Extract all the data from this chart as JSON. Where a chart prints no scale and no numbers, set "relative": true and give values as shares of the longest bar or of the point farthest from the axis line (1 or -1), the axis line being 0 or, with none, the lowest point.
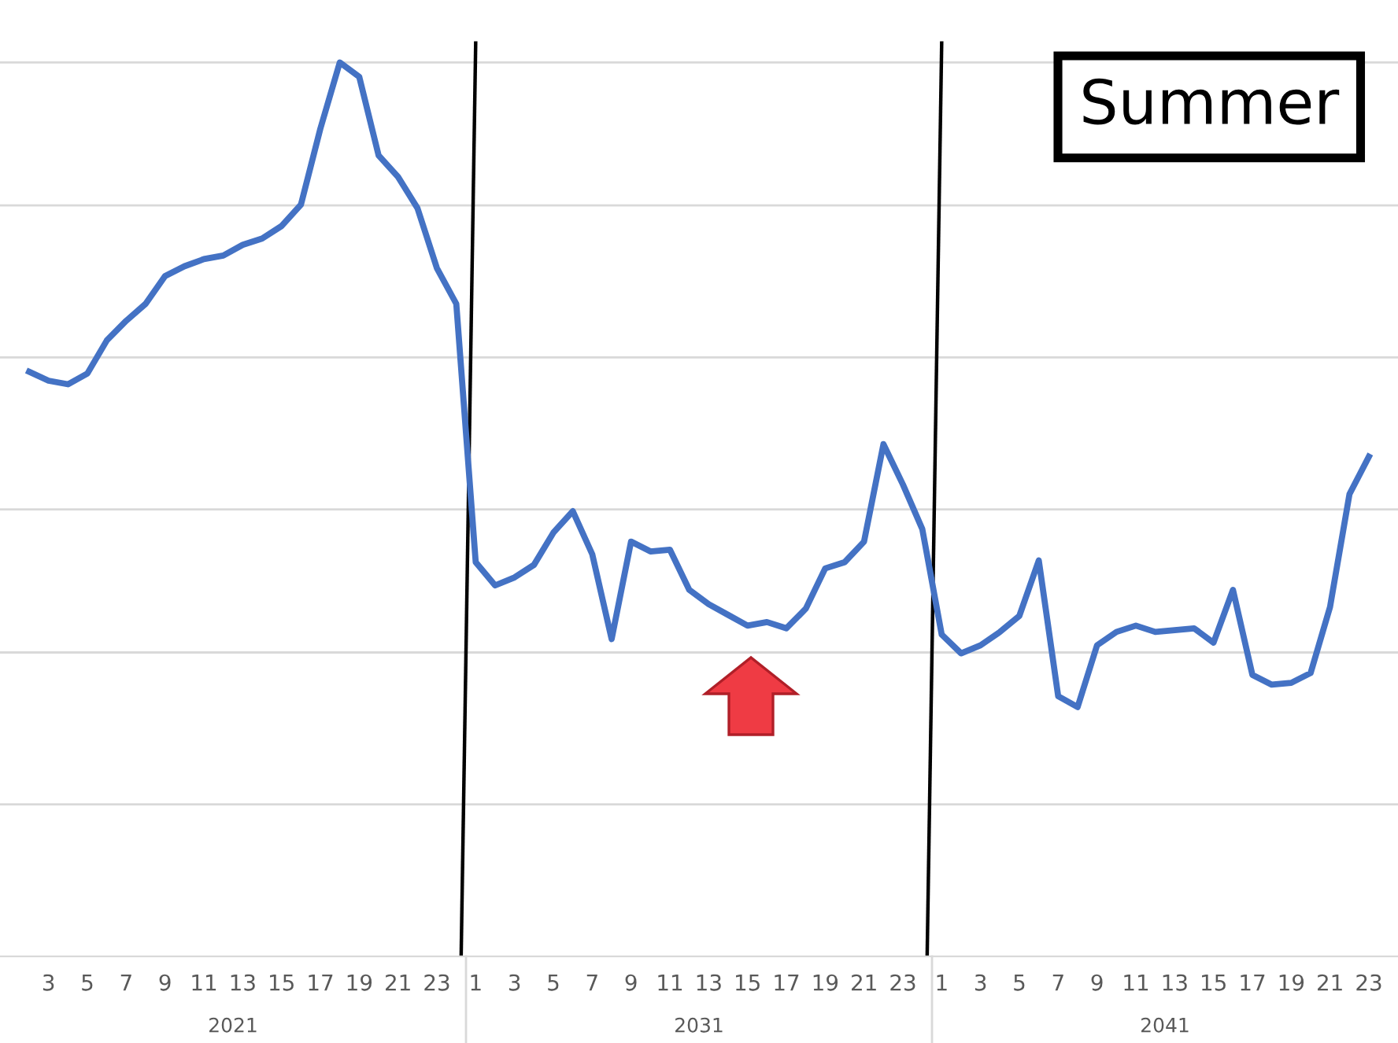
{
  "chart_data": {
    "type": "line",
    "relative": true,
    "grid": "y",
    "marker": "none",
    "line_style": "solid",
    "categories": [
      null,
      null,
      "3",
      null,
      "5",
      null,
      "7",
      null,
      "9",
      null,
      "11",
      null,
      "13",
      null,
      "15",
      null,
      "17",
      null,
      "19",
      null,
      "21",
      null,
      "23",
      null,
      "1",
      null,
      "3",
      null,
      "5",
      null,
      "7",
      null,
      "9",
      null,
      "11",
      null,
      "13",
      null,
      "15",
      null,
      "17",
      null,
      "19",
      null,
      "21",
      null,
      "23",
      null,
      "1",
      null,
      "3",
      null,
      "5",
      null,
      "7",
      null,
      "9",
      null,
      "11",
      null,
      "13",
      null,
      "15",
      null,
      "17",
      null,
      "19",
      null,
      "21",
      null,
      "23",
      null
    ],
    "series": [
      {
        "color": "#4472c4",
        "values": [
          null,
          0.654,
          0.644,
          0.64,
          0.652,
          0.689,
          0.711,
          0.73,
          0.761,
          0.772,
          0.78,
          0.784,
          0.796,
          0.803,
          0.817,
          0.841,
          0.926,
          1,
          0.984,
          0.896,
          0.872,
          0.837,
          0.77,
          0.73,
          0.441,
          0.415,
          0.424,
          0.438,
          0.474,
          0.498,
          0.45,
          0.355,
          0.464,
          0.453,
          0.455,
          0.41,
          0.394,
          0.382,
          0.37,
          0.374,
          0.367,
          0.389,
          0.434,
          0.441,
          0.464,
          0.573,
          0.528,
          0.478,
          0.36,
          0.339,
          0.348,
          0.363,
          0.381,
          0.443,
          0.291,
          0.279,
          0.348,
          0.363,
          0.37,
          0.363,
          0.365,
          0.367,
          0.351,
          0.41,
          0.315,
          0.304,
          0.306,
          0.317,
          0.391,
          0.517,
          0.559,
          null
        ]
      }
    ],
    "annotations": [
      "Summer",
      "2021",
      "2031",
      "2041"
    ]
  }
}
